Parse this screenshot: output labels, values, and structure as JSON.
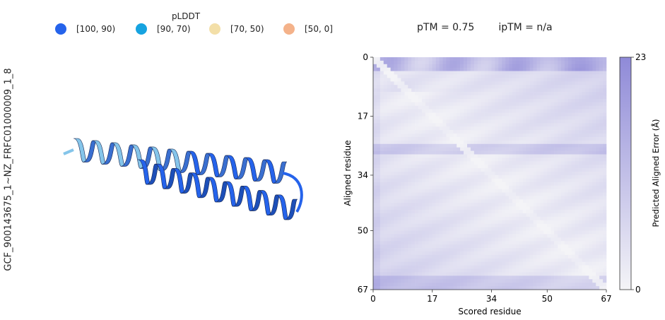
{
  "side_label": "GCF_900143675_1~NZ_FRFC01000009_1_8",
  "legend": {
    "title": "pLDDT",
    "items": [
      {
        "label": "[100, 90)",
        "color": "#2563eb"
      },
      {
        "label": "[90, 70)",
        "color": "#16a3e0"
      },
      {
        "label": "[70, 50)",
        "color": "#f3dfa8"
      },
      {
        "label": "[50, 0]",
        "color": "#f4b28a"
      }
    ]
  },
  "metrics": {
    "ptm": "pTM = 0.75",
    "iptm": "ipTM = n/a"
  },
  "structure": {
    "colors": {
      "helix_dark": "#2563eb",
      "helix_light": "#85c5ea",
      "outline": "#1a2a55"
    }
  },
  "chart_data": {
    "type": "heatmap",
    "xlabel": "Scored residue",
    "ylabel": "Aligned residue",
    "x_ticks": [
      0,
      17,
      34,
      50,
      67
    ],
    "y_ticks": [
      0,
      17,
      34,
      50,
      67
    ],
    "xlim": [
      0,
      67
    ],
    "ylim": [
      0,
      67
    ],
    "colorbar": {
      "label": "Predicted Aligned Error (Å)",
      "min": 0,
      "max": 23,
      "tick_labels": [
        "23",
        "0"
      ],
      "color_low": "#f4f4f7",
      "color_high": "#8f8ad8"
    }
  }
}
